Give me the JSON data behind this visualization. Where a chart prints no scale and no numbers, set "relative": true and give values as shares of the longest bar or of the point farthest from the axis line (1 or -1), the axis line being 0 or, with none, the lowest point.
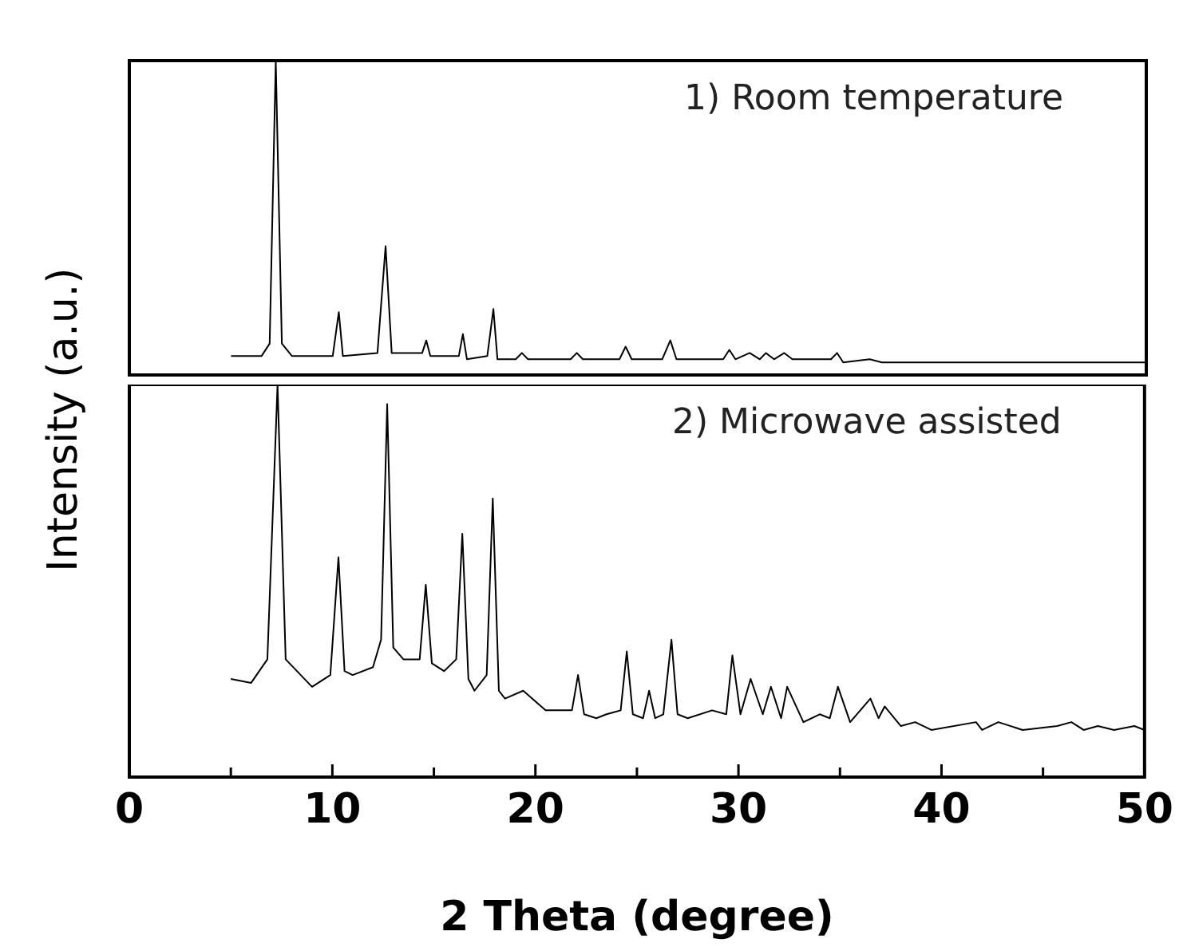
{
  "chart_data": [
    {
      "type": "line",
      "ylabel": "Intensity (a.u.)",
      "relative": true,
      "xlim": [
        0,
        50
      ],
      "tick_labels": false,
      "annotations": [
        "1) Room temperature"
      ],
      "series": [
        {
          "color": "#000000",
          "x": [
            5,
            6.5,
            6.9,
            7.2,
            7.5,
            8,
            10.0,
            10.3,
            10.5,
            12.2,
            12.6,
            12.9,
            14.4,
            14.6,
            14.8,
            16.2,
            16.4,
            16.6,
            17.6,
            17.9,
            18.1,
            19.0,
            19.3,
            19.6,
            21.7,
            22.0,
            22.3,
            24.1,
            24.4,
            24.7,
            26.2,
            26.6,
            26.9,
            29.2,
            29.5,
            29.8,
            30.5,
            31.0,
            31.3,
            31.7,
            32.2,
            32.6,
            34.5,
            34.8,
            35.1,
            36.4,
            37,
            50
          ],
          "values": [
            0.06,
            0.06,
            0.1,
            1.0,
            0.1,
            0.06,
            0.06,
            0.2,
            0.06,
            0.07,
            0.41,
            0.07,
            0.07,
            0.11,
            0.06,
            0.06,
            0.13,
            0.05,
            0.06,
            0.21,
            0.05,
            0.05,
            0.07,
            0.05,
            0.05,
            0.07,
            0.05,
            0.05,
            0.09,
            0.05,
            0.05,
            0.11,
            0.05,
            0.05,
            0.08,
            0.05,
            0.07,
            0.05,
            0.07,
            0.05,
            0.07,
            0.05,
            0.05,
            0.07,
            0.04,
            0.05,
            0.04,
            0.04
          ]
        }
      ]
    },
    {
      "type": "line",
      "xlabel": "2 Theta (degree)",
      "relative": true,
      "xlim": [
        0,
        50
      ],
      "xticks": [
        0,
        {
          "value": 5,
          "label": null
        },
        10,
        {
          "value": 15,
          "label": null
        },
        20,
        {
          "value": 25,
          "label": null
        },
        30,
        {
          "value": 35,
          "label": null
        },
        40,
        {
          "value": 45,
          "label": null
        },
        50
      ],
      "tick_labels": "x",
      "annotations": [
        "2) Microwave assisted"
      ],
      "series": [
        {
          "color": "#000000",
          "x": [
            5,
            6,
            6.8,
            7.3,
            7.7,
            9,
            9.9,
            10.3,
            10.6,
            11,
            12,
            12.4,
            12.7,
            13.0,
            13.5,
            14.3,
            14.6,
            14.9,
            15.5,
            16.1,
            16.4,
            16.7,
            17,
            17.6,
            17.9,
            18.2,
            18.5,
            19.4,
            20.5,
            21.8,
            22.1,
            22.4,
            23,
            23.5,
            24.2,
            24.5,
            24.8,
            25.3,
            25.6,
            25.9,
            26.3,
            26.7,
            27.0,
            27.5,
            28.7,
            29.4,
            29.7,
            30.1,
            30.6,
            31.2,
            31.6,
            32.1,
            32.4,
            33.2,
            34.0,
            34.5,
            34.9,
            35.5,
            36.5,
            36.9,
            37.2,
            38,
            38.7,
            39.5,
            41.7,
            42,
            42.8,
            44,
            45.7,
            46.4,
            47,
            47.7,
            48.5,
            49.5,
            50
          ],
          "values": [
            0.25,
            0.24,
            0.3,
            1.0,
            0.3,
            0.23,
            0.26,
            0.56,
            0.27,
            0.26,
            0.28,
            0.35,
            0.95,
            0.33,
            0.3,
            0.3,
            0.49,
            0.29,
            0.27,
            0.3,
            0.62,
            0.25,
            0.22,
            0.26,
            0.71,
            0.22,
            0.2,
            0.22,
            0.17,
            0.17,
            0.26,
            0.16,
            0.15,
            0.16,
            0.17,
            0.32,
            0.16,
            0.15,
            0.22,
            0.15,
            0.16,
            0.35,
            0.16,
            0.15,
            0.17,
            0.16,
            0.31,
            0.16,
            0.25,
            0.16,
            0.23,
            0.15,
            0.23,
            0.14,
            0.16,
            0.15,
            0.23,
            0.14,
            0.2,
            0.15,
            0.18,
            0.13,
            0.14,
            0.12,
            0.14,
            0.12,
            0.14,
            0.12,
            0.13,
            0.14,
            0.12,
            0.13,
            0.12,
            0.13,
            0.12
          ]
        }
      ]
    }
  ]
}
